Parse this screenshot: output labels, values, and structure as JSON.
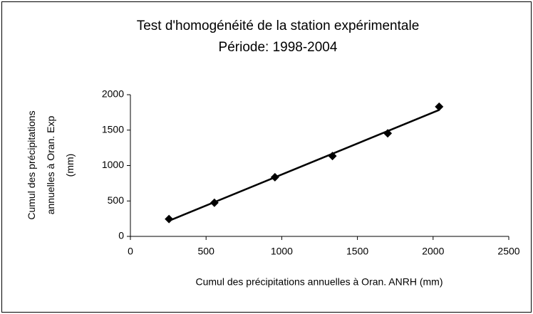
{
  "chart_data": {
    "type": "scatter",
    "title": "Test d'homogénéité de la station expérimentale",
    "subtitle": "Période: 1998-2004",
    "xlabel": "Cumul des précipitations annuelles à Oran. ANRH (mm)",
    "ylabel": [
      "Cumul des précipitations",
      "annuelles à Oran. Exp",
      "(mm)"
    ],
    "series": [
      {
        "color": "#000000",
        "x": [
          255,
          555,
          955,
          1335,
          1700,
          2040
        ],
        "values": [
          245,
          475,
          835,
          1135,
          1455,
          1830
        ]
      }
    ],
    "trendline": true,
    "xlim": [
      0,
      2500
    ],
    "xticks": [
      0,
      500,
      1000,
      1500,
      2000,
      2500
    ],
    "ylim": [
      0,
      2000
    ],
    "yticks": [
      0,
      500,
      1000,
      1500,
      2000
    ]
  }
}
